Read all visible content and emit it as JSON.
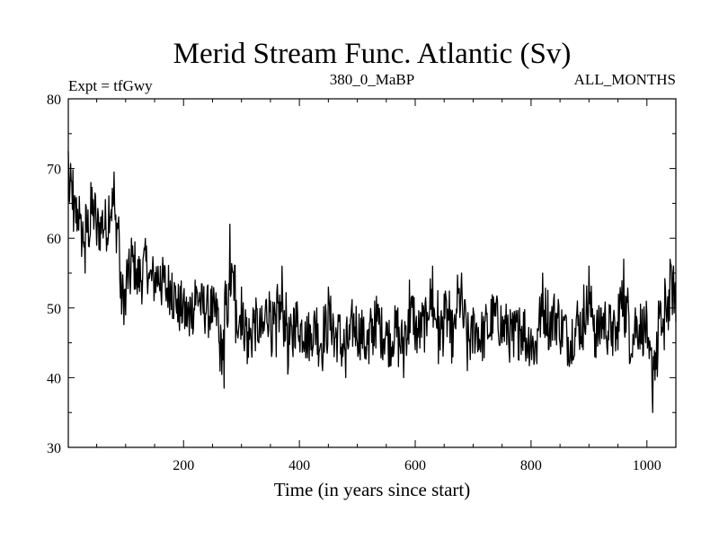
{
  "chart_data": {
    "type": "line",
    "title": "Merid Stream Func. Atlantic (Sv)",
    "subtitle_left": "Expt = tfGwy",
    "subtitle_center": "380_0_MaBP",
    "subtitle_right": "ALL_MONTHS",
    "xlabel": "Time (in years since start)",
    "ylabel": "",
    "xlim": [
      1,
      1050
    ],
    "ylim": [
      30,
      80
    ],
    "xticks": [
      200,
      400,
      600,
      800,
      1000
    ],
    "yticks": [
      30,
      40,
      50,
      60,
      70,
      80
    ],
    "grid": false,
    "line_color": "#000000",
    "series": [
      {
        "name": "Merid Stream Func. Atlantic",
        "sample_every_years": 10,
        "x": [
          1,
          10,
          20,
          30,
          40,
          50,
          60,
          70,
          80,
          90,
          100,
          110,
          120,
          130,
          140,
          150,
          160,
          170,
          180,
          190,
          200,
          210,
          220,
          230,
          240,
          250,
          260,
          270,
          280,
          290,
          300,
          310,
          320,
          330,
          340,
          350,
          360,
          370,
          380,
          390,
          400,
          410,
          420,
          430,
          440,
          450,
          460,
          470,
          480,
          490,
          500,
          510,
          520,
          530,
          540,
          550,
          560,
          570,
          580,
          590,
          600,
          610,
          620,
          630,
          640,
          650,
          660,
          670,
          680,
          690,
          700,
          710,
          720,
          730,
          740,
          750,
          760,
          770,
          780,
          790,
          800,
          810,
          820,
          830,
          840,
          850,
          860,
          870,
          880,
          890,
          900,
          910,
          920,
          930,
          940,
          950,
          960,
          970,
          980,
          990,
          1000,
          1010,
          1020,
          1030,
          1040,
          1050
        ],
        "y": [
          72.5,
          61,
          66,
          55,
          68,
          59,
          64,
          60,
          69.5,
          54,
          49,
          60,
          52,
          57,
          55,
          53,
          56,
          51,
          55,
          48,
          52,
          46,
          54,
          49,
          51,
          48,
          50,
          38.5,
          62,
          45,
          53,
          42,
          50,
          45,
          48,
          51,
          43,
          56,
          40.5,
          50,
          46,
          48,
          44,
          50,
          41,
          53,
          43,
          49,
          40,
          50,
          45,
          48,
          42,
          51,
          45,
          48,
          43,
          50,
          40,
          54,
          44,
          49,
          46,
          56,
          42,
          52,
          45,
          47,
          55,
          41,
          50,
          44,
          48,
          46,
          51,
          45,
          49,
          43,
          50,
          44,
          47,
          42,
          55,
          44,
          52,
          45,
          49,
          42,
          51,
          44,
          56,
          43,
          50,
          46,
          48,
          44,
          57,
          42,
          50,
          45,
          49,
          35,
          51,
          44,
          57,
          48
        ]
      }
    ]
  }
}
